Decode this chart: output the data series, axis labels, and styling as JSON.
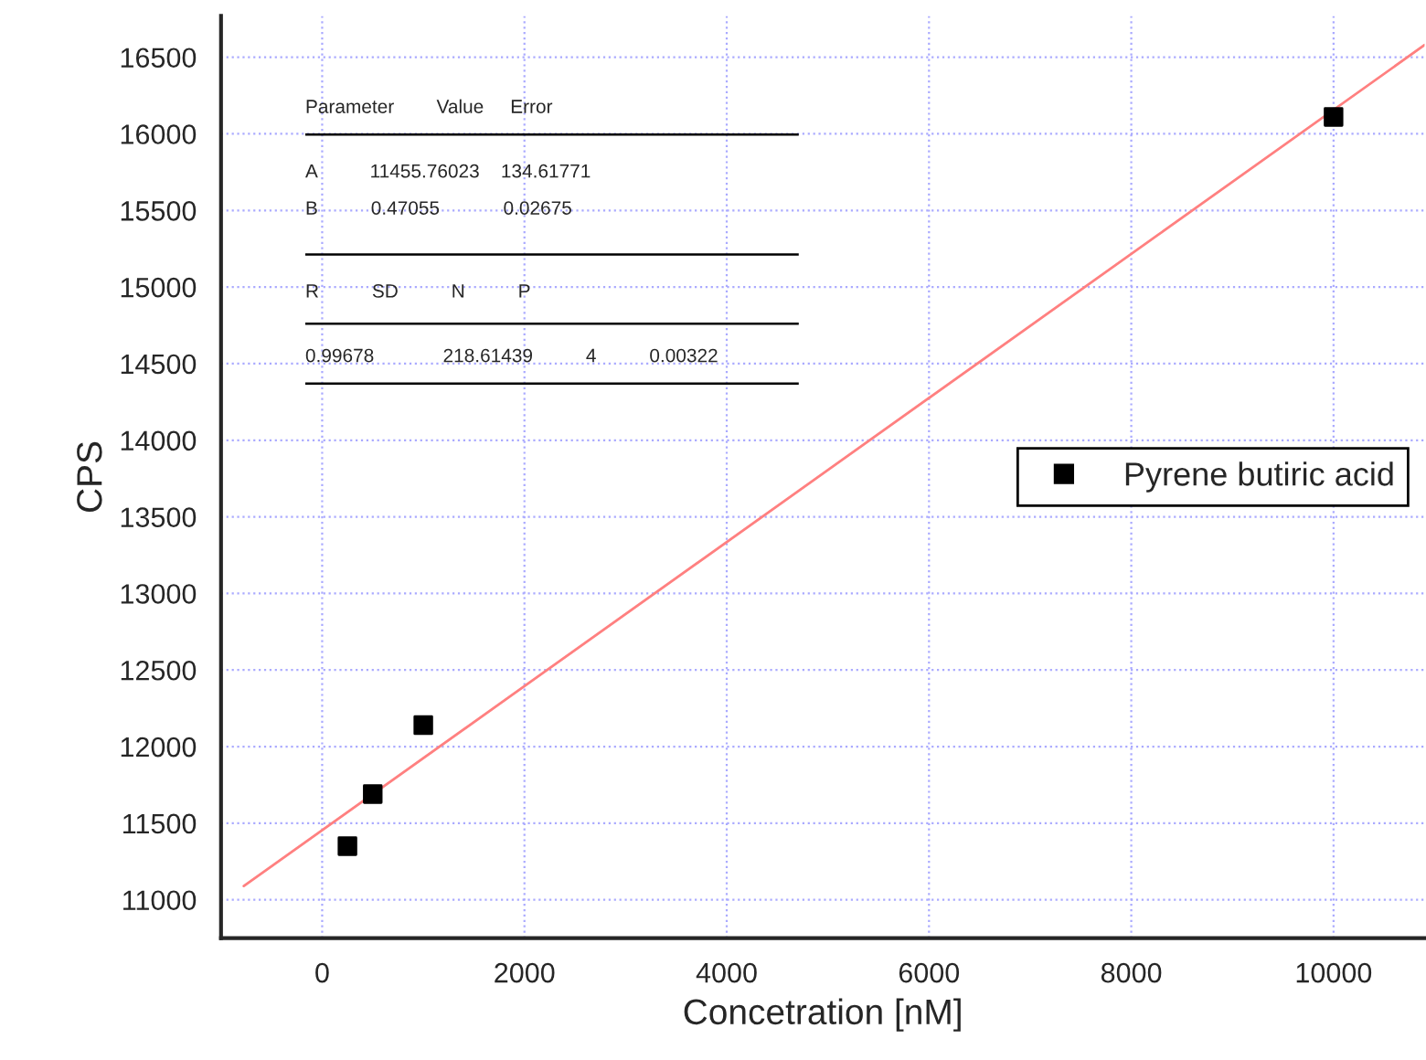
{
  "chart_data": {
    "type": "scatter",
    "xlabel": "Concetration [nM]",
    "ylabel": "CPS",
    "x": [
      250,
      500,
      1000,
      10000
    ],
    "series": [
      {
        "name": "Pyrene butiric acid",
        "color": "#000000",
        "marker": "square",
        "values": [
          11350,
          11690,
          12140,
          16110
        ]
      },
      {
        "type": "line",
        "color": "#ff8080",
        "marker": "none",
        "line_style": "solid",
        "x": [
          -775,
          10900
        ],
        "values": [
          11090,
          16580
        ]
      }
    ],
    "annotations": [
      "Parameter        Value     Error",
      "A          11455.76023    134.61771",
      "B          0.47055            0.02675",
      "R          SD          N          P",
      "0.99678             218.61439          4          0.00322"
    ],
    "xlim": [
      -1000,
      10900
    ],
    "ylim": [
      10750,
      16770
    ],
    "xticks": [
      0,
      2000,
      4000,
      6000,
      8000,
      10000
    ],
    "yticks": [
      11000,
      11500,
      12000,
      12500,
      13000,
      13500,
      14000,
      14500,
      15000,
      15500,
      16000,
      16500
    ],
    "grid": true,
    "legend": "right"
  }
}
